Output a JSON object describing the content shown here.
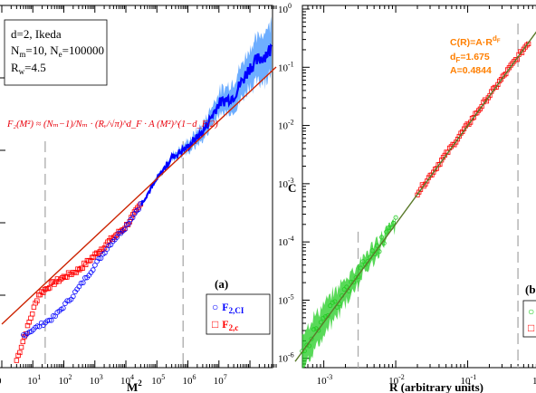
{
  "colors": {
    "blue": "#0000ff",
    "lightblue": "#5ea5ff",
    "red": "#ff0000",
    "green": "#22cc22",
    "fitline": "#cc2200",
    "orange": "#ff7f00",
    "vline": "#aaaaaa"
  },
  "left_panel": {
    "info": {
      "line1": "d=2, Ikeda",
      "line2": "N",
      "line2_sub1": "m",
      "line2_mid": "=10, N",
      "line2_sub2": "e",
      "line2_end": "=100000",
      "line3": "R",
      "line3_sub": "w",
      "line3_end": "=4.5"
    },
    "formula": "F₂(M²) ≈ (Nₘ−1)/Nₘ · (Rᵥ/√π)^d_F · A (M²)^(1−d_F/2)",
    "panel_label": "(a)",
    "legend": {
      "ci_symbol": "○",
      "ci_label": "F",
      "ci_sub": "2,CI",
      "c_symbol": "□",
      "c_label": "F",
      "c_sub": "2,c"
    },
    "xtick_labels": [
      "0",
      "10",
      "10",
      "10",
      "10",
      "10",
      "10",
      "10"
    ],
    "xtick_exps": [
      "",
      "1",
      "2",
      "3",
      "4",
      "5",
      "6",
      "7"
    ],
    "xlabel": "M",
    "xlabel_sup": "2"
  },
  "right_panel": {
    "ylabel": "C",
    "xlabel": "R (arbitrary units)",
    "ytick_base": "10",
    "ytick_exps": [
      "0",
      "-1",
      "-2",
      "-3",
      "-4",
      "-5",
      "-6"
    ],
    "xtick_base": "10",
    "xtick_exps": [
      "-3",
      "-2",
      "-1",
      ""
    ],
    "fit": {
      "line1": "C(R)=A·R",
      "line1_sup": "d",
      "line1_sup_sub": "F",
      "line2": "d",
      "line2_sub": "F",
      "line2_end": "=1.675",
      "line3": "A=0.4844"
    },
    "panel_label_partial": "(b",
    "legend_partial": [
      "○",
      "□"
    ]
  },
  "chart_data": [
    {
      "type": "scatter",
      "panel": "(a)",
      "xlabel": "M²",
      "ylabel": "",
      "x_scale": "log",
      "xlim": [
        1,
        700000000
      ],
      "series": [
        {
          "name": "F2,CI",
          "marker": "circle",
          "x": [
            5,
            50,
            200,
            800,
            3000,
            10000,
            30000,
            100000,
            300000,
            1000000,
            3000000,
            10000000,
            30000000,
            100000000,
            500000000
          ],
          "y": [
            0.09,
            0.14,
            0.2,
            0.27,
            0.34,
            0.39,
            0.45,
            0.52,
            0.58,
            0.61,
            0.65,
            0.73,
            0.75,
            0.83,
            0.88
          ]
        },
        {
          "name": "F2,c",
          "marker": "square",
          "x": [
            3,
            8,
            15,
            40,
            100,
            300,
            1000,
            3000,
            10000,
            30000
          ],
          "y": [
            0.02,
            0.13,
            0.2,
            0.23,
            0.25,
            0.27,
            0.31,
            0.35,
            0.39,
            0.45
          ]
        }
      ],
      "fit_line": {
        "x": [
          1,
          700000000
        ],
        "y": [
          0.12,
          0.83
        ]
      },
      "reference_lines_x": [
        25,
        700000
      ]
    },
    {
      "type": "scatter",
      "panel": "(b)",
      "xlabel": "R (arbitrary units)",
      "ylabel": "C",
      "x_scale": "log",
      "y_scale": "log",
      "xlim": [
        0.0004,
        1
      ],
      "ylim": [
        6e-07,
        1
      ],
      "series": [
        {
          "marker": "circle",
          "color": "green",
          "x": [
            0.0005,
            0.0008,
            0.001,
            0.002,
            0.003,
            0.005,
            0.01
          ],
          "y": [
            1e-06,
            2.5e-06,
            4e-06,
            1.2e-05,
            2.5e-05,
            6e-05,
            0.0002
          ]
        },
        {
          "marker": "square",
          "color": "red",
          "x": [
            0.02,
            0.03,
            0.05,
            0.1,
            0.2,
            0.4,
            0.7
          ],
          "y": [
            0.0006,
            0.0012,
            0.003,
            0.01,
            0.035,
            0.13,
            0.4
          ]
        }
      ],
      "fit_line": {
        "x": [
          0.0004,
          1
        ],
        "y": [
          8.84e-07,
          0.4844
        ]
      },
      "reference_lines_x": [
        0.003,
        0.5
      ]
    }
  ]
}
